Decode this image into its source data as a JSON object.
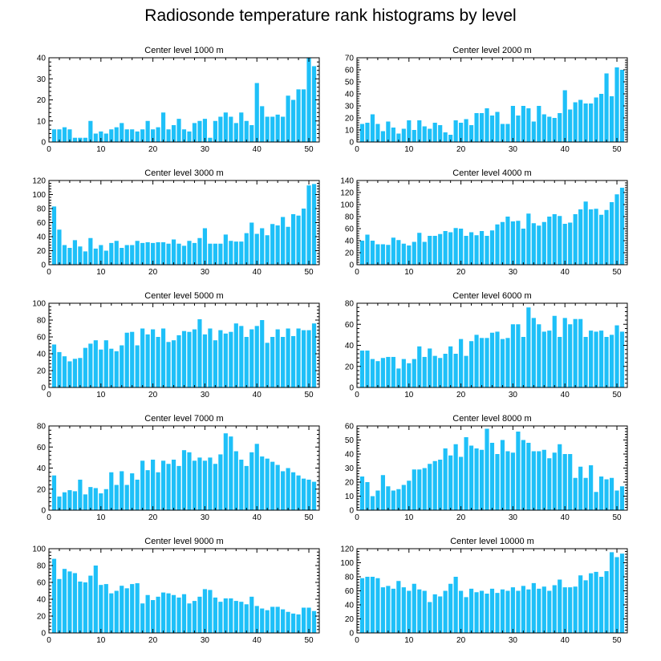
{
  "figure": {
    "title": "Radiosonde temperature rank histograms by level",
    "bar_color": "#1ec0f8",
    "axis_color": "#000000"
  },
  "chart_data": [
    {
      "type": "bar",
      "title": "Center level 1000 m",
      "xlim": [
        0,
        52
      ],
      "ylim": [
        0,
        40
      ],
      "xticks": [
        0,
        10,
        20,
        30,
        40,
        50
      ],
      "yticks": [
        0,
        10,
        20,
        30,
        40
      ],
      "x": [
        1,
        2,
        3,
        4,
        5,
        6,
        7,
        8,
        9,
        10,
        11,
        12,
        13,
        14,
        15,
        16,
        17,
        18,
        19,
        20,
        21,
        22,
        23,
        24,
        25,
        26,
        27,
        28,
        29,
        30,
        31,
        32,
        33,
        34,
        35,
        36,
        37,
        38,
        39,
        40,
        41,
        42,
        43,
        44,
        45,
        46,
        47,
        48,
        49,
        50,
        51
      ],
      "values": [
        6,
        6,
        7,
        6,
        2,
        2,
        2,
        10,
        4,
        5,
        4,
        6,
        7,
        9,
        6,
        6,
        5,
        6,
        10,
        6,
        7,
        14,
        6,
        8,
        11,
        6,
        5,
        9,
        10,
        11,
        2,
        10,
        12,
        14,
        12,
        9,
        14,
        10,
        8,
        28,
        17,
        12,
        12,
        13,
        12,
        22,
        20,
        25,
        25,
        40,
        36
      ]
    },
    {
      "type": "bar",
      "title": "Center level 2000 m",
      "xlim": [
        0,
        52
      ],
      "ylim": [
        0,
        70
      ],
      "xticks": [
        0,
        10,
        20,
        30,
        40,
        50
      ],
      "yticks": [
        0,
        10,
        20,
        30,
        40,
        50,
        60,
        70
      ],
      "x": [
        1,
        2,
        3,
        4,
        5,
        6,
        7,
        8,
        9,
        10,
        11,
        12,
        13,
        14,
        15,
        16,
        17,
        18,
        19,
        20,
        21,
        22,
        23,
        24,
        25,
        26,
        27,
        28,
        29,
        30,
        31,
        32,
        33,
        34,
        35,
        36,
        37,
        38,
        39,
        40,
        41,
        42,
        43,
        44,
        45,
        46,
        47,
        48,
        49,
        50,
        51
      ],
      "values": [
        15,
        16,
        23,
        15,
        9,
        17,
        12,
        7,
        11,
        18,
        10,
        18,
        13,
        11,
        16,
        14,
        8,
        6,
        18,
        16,
        19,
        14,
        24,
        24,
        28,
        22,
        25,
        15,
        15,
        30,
        22,
        30,
        28,
        17,
        30,
        23,
        21,
        20,
        24,
        43,
        27,
        33,
        35,
        32,
        32,
        37,
        40,
        57,
        38,
        62,
        60
      ]
    },
    {
      "type": "bar",
      "title": "Center level 3000 m",
      "xlim": [
        0,
        52
      ],
      "ylim": [
        0,
        120
      ],
      "xticks": [
        0,
        10,
        20,
        30,
        40,
        50
      ],
      "yticks": [
        0,
        20,
        40,
        60,
        80,
        100,
        120
      ],
      "x": [
        1,
        2,
        3,
        4,
        5,
        6,
        7,
        8,
        9,
        10,
        11,
        12,
        13,
        14,
        15,
        16,
        17,
        18,
        19,
        20,
        21,
        22,
        23,
        24,
        25,
        26,
        27,
        28,
        29,
        30,
        31,
        32,
        33,
        34,
        35,
        36,
        37,
        38,
        39,
        40,
        41,
        42,
        43,
        44,
        45,
        46,
        47,
        48,
        49,
        50,
        51
      ],
      "values": [
        83,
        50,
        28,
        24,
        35,
        26,
        19,
        38,
        23,
        28,
        20,
        31,
        34,
        24,
        28,
        28,
        34,
        31,
        32,
        31,
        32,
        32,
        30,
        36,
        30,
        27,
        34,
        31,
        38,
        52,
        30,
        30,
        30,
        43,
        34,
        33,
        33,
        45,
        60,
        44,
        52,
        42,
        58,
        56,
        68,
        54,
        72,
        70,
        80,
        113,
        115
      ]
    },
    {
      "type": "bar",
      "title": "Center level 4000 m",
      "xlim": [
        0,
        52
      ],
      "ylim": [
        0,
        140
      ],
      "xticks": [
        0,
        10,
        20,
        30,
        40,
        50
      ],
      "yticks": [
        0,
        20,
        40,
        60,
        80,
        100,
        120,
        140
      ],
      "x": [
        1,
        2,
        3,
        4,
        5,
        6,
        7,
        8,
        9,
        10,
        11,
        12,
        13,
        14,
        15,
        16,
        17,
        18,
        19,
        20,
        21,
        22,
        23,
        24,
        25,
        26,
        27,
        28,
        29,
        30,
        31,
        32,
        33,
        34,
        35,
        36,
        37,
        38,
        39,
        40,
        41,
        42,
        43,
        44,
        45,
        46,
        47,
        48,
        49,
        50,
        51
      ],
      "values": [
        40,
        50,
        40,
        34,
        34,
        33,
        45,
        41,
        35,
        32,
        38,
        53,
        38,
        48,
        48,
        51,
        56,
        54,
        61,
        60,
        48,
        54,
        49,
        56,
        48,
        57,
        67,
        71,
        80,
        72,
        73,
        60,
        85,
        69,
        65,
        71,
        80,
        84,
        81,
        68,
        70,
        84,
        92,
        105,
        92,
        93,
        83,
        91,
        104,
        117,
        128
      ]
    },
    {
      "type": "bar",
      "title": "Center level 5000 m",
      "xlim": [
        0,
        52
      ],
      "ylim": [
        0,
        100
      ],
      "xticks": [
        0,
        10,
        20,
        30,
        40,
        50
      ],
      "yticks": [
        0,
        20,
        40,
        60,
        80,
        100
      ],
      "x": [
        1,
        2,
        3,
        4,
        5,
        6,
        7,
        8,
        9,
        10,
        11,
        12,
        13,
        14,
        15,
        16,
        17,
        18,
        19,
        20,
        21,
        22,
        23,
        24,
        25,
        26,
        27,
        28,
        29,
        30,
        31,
        32,
        33,
        34,
        35,
        36,
        37,
        38,
        39,
        40,
        41,
        42,
        43,
        44,
        45,
        46,
        47,
        48,
        49,
        50,
        51
      ],
      "values": [
        51,
        42,
        37,
        31,
        34,
        35,
        47,
        52,
        56,
        45,
        56,
        46,
        43,
        50,
        65,
        66,
        50,
        70,
        63,
        69,
        60,
        70,
        54,
        56,
        62,
        67,
        66,
        69,
        81,
        63,
        70,
        56,
        68,
        64,
        66,
        76,
        73,
        60,
        69,
        73,
        80,
        53,
        60,
        69,
        60,
        70,
        61,
        70,
        68,
        68,
        76
      ]
    },
    {
      "type": "bar",
      "title": "Center level 6000 m",
      "xlim": [
        0,
        52
      ],
      "ylim": [
        0,
        80
      ],
      "xticks": [
        0,
        10,
        20,
        30,
        40,
        50
      ],
      "yticks": [
        0,
        20,
        40,
        60,
        80
      ],
      "x": [
        1,
        2,
        3,
        4,
        5,
        6,
        7,
        8,
        9,
        10,
        11,
        12,
        13,
        14,
        15,
        16,
        17,
        18,
        19,
        20,
        21,
        22,
        23,
        24,
        25,
        26,
        27,
        28,
        29,
        30,
        31,
        32,
        33,
        34,
        35,
        36,
        37,
        38,
        39,
        40,
        41,
        42,
        43,
        44,
        45,
        46,
        47,
        48,
        49,
        50,
        51
      ],
      "values": [
        35,
        35,
        27,
        25,
        28,
        29,
        29,
        18,
        27,
        23,
        27,
        39,
        29,
        37,
        30,
        28,
        32,
        39,
        32,
        46,
        30,
        44,
        50,
        47,
        47,
        52,
        53,
        46,
        47,
        60,
        60,
        48,
        76,
        66,
        60,
        53,
        54,
        68,
        48,
        66,
        60,
        65,
        65,
        48,
        54,
        53,
        54,
        48,
        50,
        59,
        53
      ]
    },
    {
      "type": "bar",
      "title": "Center level 7000 m",
      "xlim": [
        0,
        52
      ],
      "ylim": [
        0,
        80
      ],
      "xticks": [
        0,
        10,
        20,
        30,
        40,
        50
      ],
      "yticks": [
        0,
        20,
        40,
        60,
        80
      ],
      "x": [
        1,
        2,
        3,
        4,
        5,
        6,
        7,
        8,
        9,
        10,
        11,
        12,
        13,
        14,
        15,
        16,
        17,
        18,
        19,
        20,
        21,
        22,
        23,
        24,
        25,
        26,
        27,
        28,
        29,
        30,
        31,
        32,
        33,
        34,
        35,
        36,
        37,
        38,
        39,
        40,
        41,
        42,
        43,
        44,
        45,
        46,
        47,
        48,
        49,
        50,
        51
      ],
      "values": [
        33,
        13,
        17,
        19,
        18,
        29,
        15,
        22,
        21,
        16,
        20,
        36,
        24,
        37,
        24,
        35,
        29,
        47,
        38,
        48,
        36,
        47,
        44,
        48,
        42,
        57,
        55,
        47,
        50,
        47,
        50,
        44,
        53,
        73,
        70,
        56,
        48,
        42,
        55,
        63,
        51,
        49,
        46,
        43,
        37,
        40,
        36,
        33,
        30,
        29,
        27
      ]
    },
    {
      "type": "bar",
      "title": "Center level 8000 m",
      "xlim": [
        0,
        52
      ],
      "ylim": [
        0,
        60
      ],
      "xticks": [
        0,
        10,
        20,
        30,
        40,
        50
      ],
      "yticks": [
        0,
        10,
        20,
        30,
        40,
        50,
        60
      ],
      "x": [
        1,
        2,
        3,
        4,
        5,
        6,
        7,
        8,
        9,
        10,
        11,
        12,
        13,
        14,
        15,
        16,
        17,
        18,
        19,
        20,
        21,
        22,
        23,
        24,
        25,
        26,
        27,
        28,
        29,
        30,
        31,
        32,
        33,
        34,
        35,
        36,
        37,
        38,
        39,
        40,
        41,
        42,
        43,
        44,
        45,
        46,
        47,
        48,
        49,
        50,
        51
      ],
      "values": [
        24,
        20,
        10,
        14,
        25,
        17,
        14,
        15,
        18,
        21,
        29,
        29,
        30,
        33,
        35,
        36,
        44,
        39,
        47,
        38,
        52,
        46,
        44,
        43,
        58,
        48,
        40,
        50,
        42,
        41,
        56,
        50,
        48,
        42,
        42,
        43,
        37,
        41,
        47,
        40,
        40,
        23,
        31,
        23,
        32,
        13,
        24,
        22,
        23,
        14,
        17
      ]
    },
    {
      "type": "bar",
      "title": "Center level 9000 m",
      "xlim": [
        0,
        52
      ],
      "ylim": [
        0,
        100
      ],
      "xticks": [
        0,
        10,
        20,
        30,
        40,
        50
      ],
      "yticks": [
        0,
        20,
        40,
        60,
        80,
        100
      ],
      "x": [
        1,
        2,
        3,
        4,
        5,
        6,
        7,
        8,
        9,
        10,
        11,
        12,
        13,
        14,
        15,
        16,
        17,
        18,
        19,
        20,
        21,
        22,
        23,
        24,
        25,
        26,
        27,
        28,
        29,
        30,
        31,
        32,
        33,
        34,
        35,
        36,
        37,
        38,
        39,
        40,
        41,
        42,
        43,
        44,
        45,
        46,
        47,
        48,
        49,
        50,
        51
      ],
      "values": [
        88,
        64,
        76,
        73,
        71,
        61,
        60,
        68,
        80,
        57,
        58,
        47,
        50,
        56,
        53,
        58,
        59,
        35,
        45,
        39,
        43,
        48,
        47,
        45,
        42,
        46,
        35,
        38,
        43,
        52,
        51,
        42,
        37,
        41,
        41,
        38,
        37,
        34,
        43,
        32,
        29,
        27,
        31,
        31,
        28,
        25,
        23,
        22,
        30,
        30,
        26
      ]
    },
    {
      "type": "bar",
      "title": "Center level 10000 m",
      "xlim": [
        0,
        52
      ],
      "ylim": [
        0,
        120
      ],
      "xticks": [
        0,
        10,
        20,
        30,
        40,
        50
      ],
      "yticks": [
        0,
        20,
        40,
        60,
        80,
        100,
        120
      ],
      "x": [
        1,
        2,
        3,
        4,
        5,
        6,
        7,
        8,
        9,
        10,
        11,
        12,
        13,
        14,
        15,
        16,
        17,
        18,
        19,
        20,
        21,
        22,
        23,
        24,
        25,
        26,
        27,
        28,
        29,
        30,
        31,
        32,
        33,
        34,
        35,
        36,
        37,
        38,
        39,
        40,
        41,
        42,
        43,
        44,
        45,
        46,
        47,
        48,
        49,
        50,
        51
      ],
      "values": [
        78,
        80,
        80,
        78,
        65,
        67,
        63,
        74,
        65,
        60,
        70,
        62,
        60,
        44,
        55,
        52,
        60,
        70,
        80,
        60,
        51,
        63,
        58,
        60,
        56,
        63,
        57,
        62,
        60,
        65,
        60,
        67,
        62,
        71,
        63,
        66,
        60,
        68,
        76,
        65,
        65,
        66,
        82,
        75,
        85,
        87,
        80,
        88,
        115,
        108,
        113
      ]
    }
  ]
}
